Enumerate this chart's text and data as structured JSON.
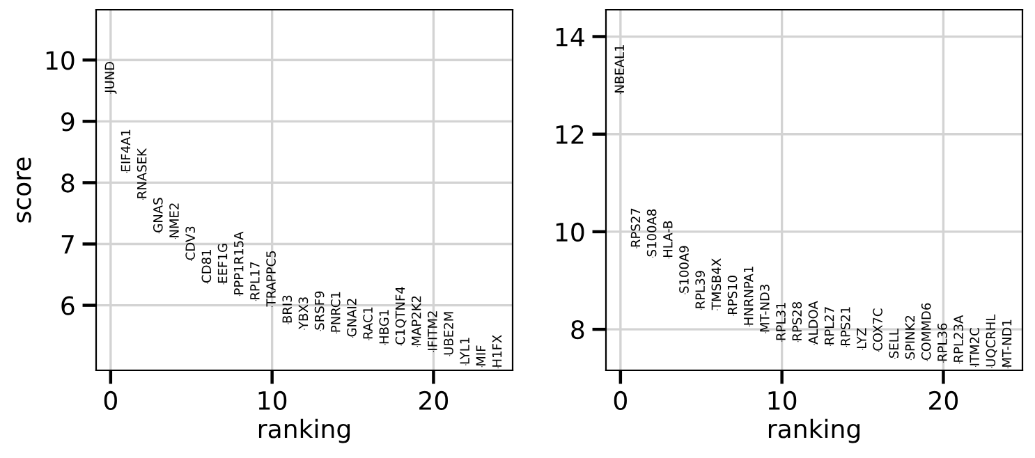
{
  "chart_data": [
    {
      "type": "scatter",
      "xlabel": "ranking",
      "ylabel": "score",
      "marker": "none",
      "grid": true,
      "xlim": [
        -0.9,
        24.9
      ],
      "xticks": [
        0,
        10,
        20
      ],
      "ylim": [
        4.94,
        10.82
      ],
      "yticks": [
        6,
        7,
        8,
        9,
        10
      ],
      "x": [
        0,
        1,
        2,
        3,
        4,
        5,
        6,
        7,
        8,
        9,
        10,
        11,
        12,
        13,
        14,
        15,
        16,
        17,
        18,
        19,
        20,
        21,
        22,
        23,
        24
      ],
      "values": [
        9.46,
        8.17,
        7.73,
        7.18,
        7.09,
        6.73,
        6.36,
        6.35,
        6.16,
        6.08,
        5.98,
        5.7,
        5.61,
        5.59,
        5.55,
        5.48,
        5.44,
        5.36,
        5.35,
        5.33,
        5.25,
        5.18,
        5.03,
        5.0,
        4.98
      ],
      "value_labels": [
        "JUND",
        "EIF4A1",
        "RNASEK",
        "GNAS",
        "NME2",
        "CDV3",
        "CD81",
        "EEF1G",
        "PPP1R15A",
        "RPL17",
        "TRAPPC5",
        "BRI3",
        "YBX3",
        "SRSF9",
        "PNRC1",
        "GNAI2",
        "RAC1",
        "HBG1",
        "C1QTNF4",
        "MAP2K2",
        "IFITM2",
        "UBE2M",
        "LYL1",
        "MIF",
        "H1FX"
      ]
    },
    {
      "type": "scatter",
      "xlabel": "ranking",
      "marker": "none",
      "grid": true,
      "xlim": [
        -0.9,
        24.9
      ],
      "xticks": [
        0,
        10,
        20
      ],
      "ylim": [
        7.16,
        14.55
      ],
      "yticks": [
        8,
        10,
        12,
        14
      ],
      "x": [
        0,
        1,
        2,
        3,
        4,
        5,
        6,
        7,
        8,
        9,
        10,
        11,
        12,
        13,
        14,
        15,
        16,
        17,
        18,
        19,
        20,
        21,
        22,
        23,
        24
      ],
      "values": [
        12.83,
        9.67,
        9.48,
        9.46,
        8.73,
        8.41,
        8.4,
        8.29,
        8.07,
        7.93,
        7.76,
        7.75,
        7.69,
        7.67,
        7.65,
        7.59,
        7.55,
        7.4,
        7.38,
        7.36,
        7.33,
        7.31,
        7.24,
        7.22,
        7.21
      ],
      "value_labels": [
        "NBEAL1",
        "RPS27",
        "S100A8",
        "HLA-B",
        "S100A9",
        "RPL39",
        "TMSB4X",
        "RPS10",
        "HNRNPA1",
        "MT-ND3",
        "RPL31",
        "RPS28",
        "ALDOA",
        "RPL27",
        "RPS21",
        "LYZ",
        "COX7C",
        "SELL",
        "SPINK2",
        "COMMD6",
        "RPL36",
        "RPL23A",
        "ITM2C",
        "UQCRHL",
        "MT-ND1"
      ]
    }
  ]
}
